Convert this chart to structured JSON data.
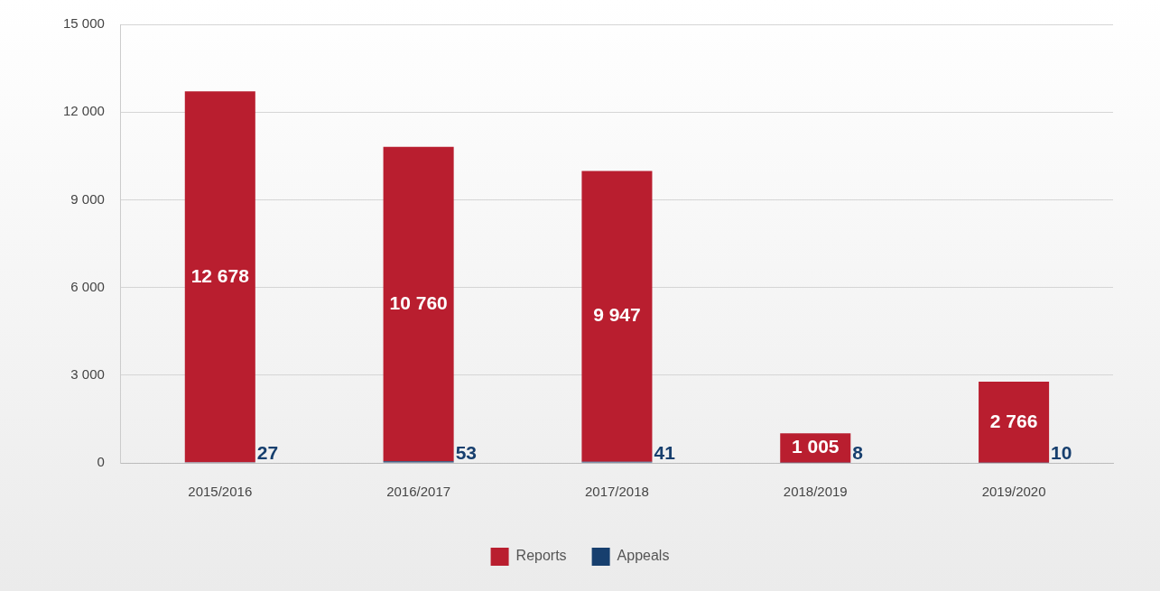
{
  "chart_data": {
    "type": "bar",
    "stacked": true,
    "categories": [
      "2015/2016",
      "2016/2017",
      "2017/2018",
      "2018/2019",
      "2019/2020"
    ],
    "series": [
      {
        "name": "Appeals",
        "color": "#173f6e",
        "values": [
          27,
          53,
          41,
          8,
          10
        ],
        "value_labels": [
          "27",
          "53",
          "41",
          "8",
          "10"
        ]
      },
      {
        "name": "Reports",
        "color": "#b91e2f",
        "values": [
          12678,
          10760,
          9947,
          1005,
          2766
        ],
        "value_labels": [
          "12 678",
          "10 760",
          "9 947",
          "1 005",
          "2 766"
        ]
      }
    ],
    "ylim": [
      0,
      15000
    ],
    "yticks": [
      {
        "value": 0,
        "label": "0"
      },
      {
        "value": 3000,
        "label": "3 000"
      },
      {
        "value": 6000,
        "label": "6 000"
      },
      {
        "value": 9000,
        "label": "9 000"
      },
      {
        "value": 12000,
        "label": "12 000"
      },
      {
        "value": 15000,
        "label": "15 000"
      }
    ],
    "grid": "y",
    "legend": "bottom"
  }
}
